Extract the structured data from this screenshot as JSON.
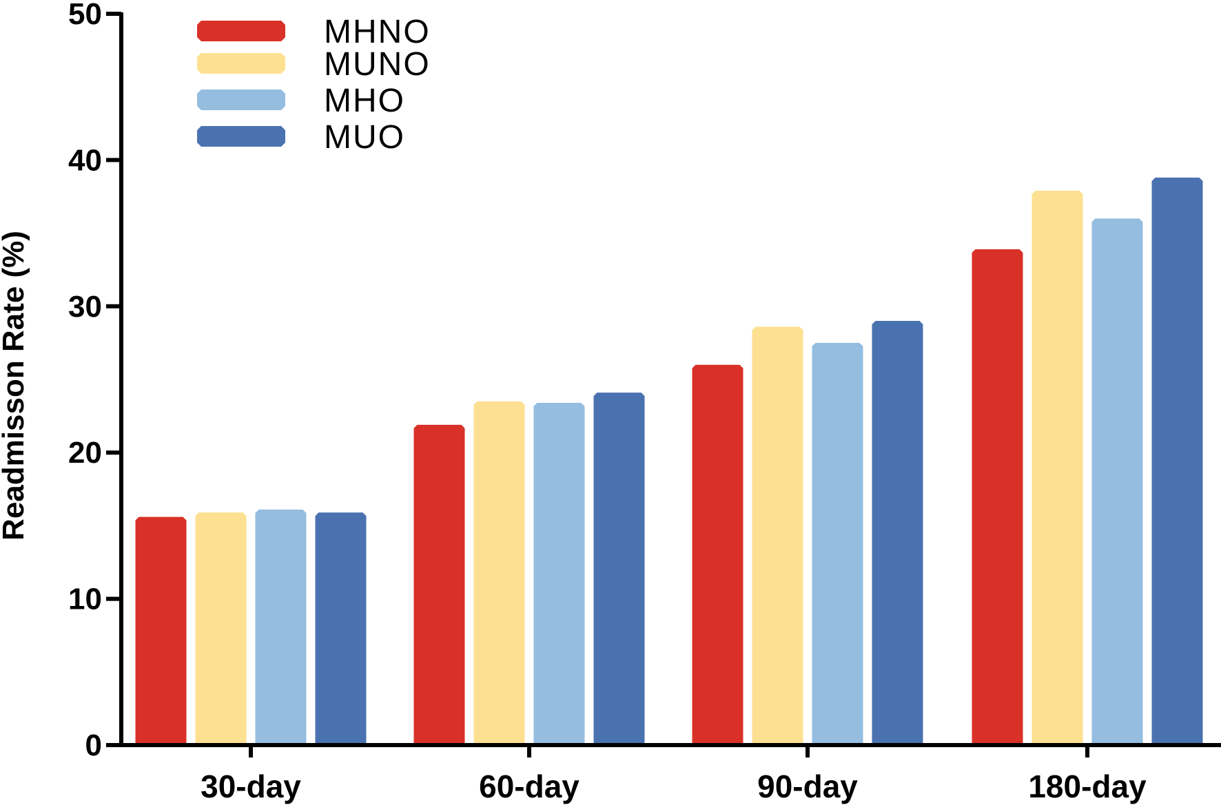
{
  "chart_data": {
    "type": "bar",
    "title": "",
    "xlabel": "",
    "ylabel": "Readmisson Rate (%)",
    "ylim": [
      0,
      50
    ],
    "yticks": [
      0,
      10,
      20,
      30,
      40,
      50
    ],
    "grid": false,
    "legend_position": "top-left",
    "categories": [
      "30-day",
      "60-day",
      "90-day",
      "180-day"
    ],
    "series": [
      {
        "name": "MHNO",
        "color": "#d93127",
        "values": [
          15.6,
          21.9,
          26.0,
          33.9
        ]
      },
      {
        "name": "MUNO",
        "color": "#fde092",
        "values": [
          15.9,
          23.5,
          28.6,
          37.9
        ]
      },
      {
        "name": "MHO",
        "color": "#94bde0",
        "values": [
          16.1,
          23.4,
          27.5,
          36.0
        ]
      },
      {
        "name": "MUO",
        "color": "#4b72b0",
        "values": [
          15.9,
          24.1,
          29.0,
          38.8
        ]
      }
    ]
  }
}
